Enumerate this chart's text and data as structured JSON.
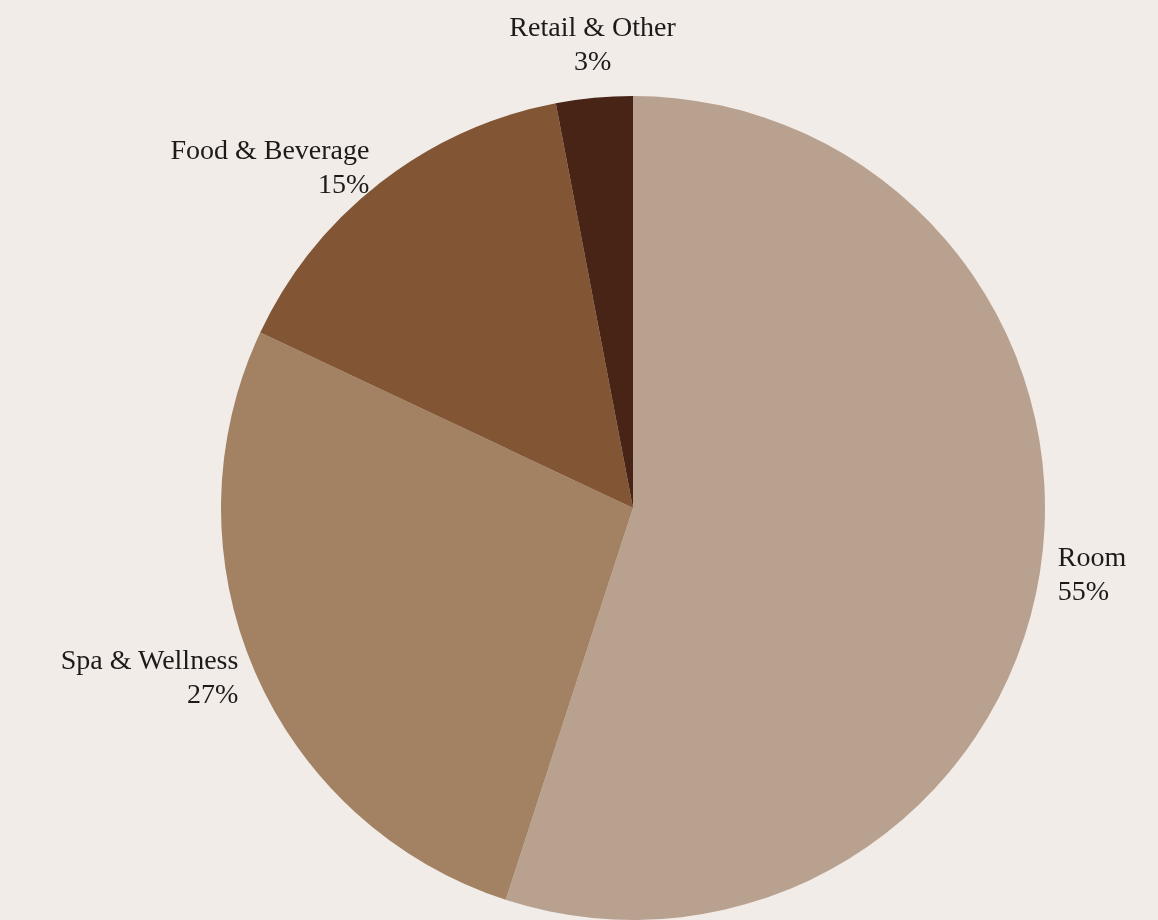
{
  "chart_data": {
    "type": "pie",
    "categories": [
      "Room",
      "Spa & Wellness",
      "Food & Beverage",
      "Retail & Other"
    ],
    "values": [
      55,
      27,
      15,
      3
    ],
    "colors": [
      "#b9a190",
      "#a28263",
      "#825535",
      "#472416"
    ],
    "value_labels": [
      "55%",
      "27%",
      "15%",
      "3%"
    ]
  }
}
